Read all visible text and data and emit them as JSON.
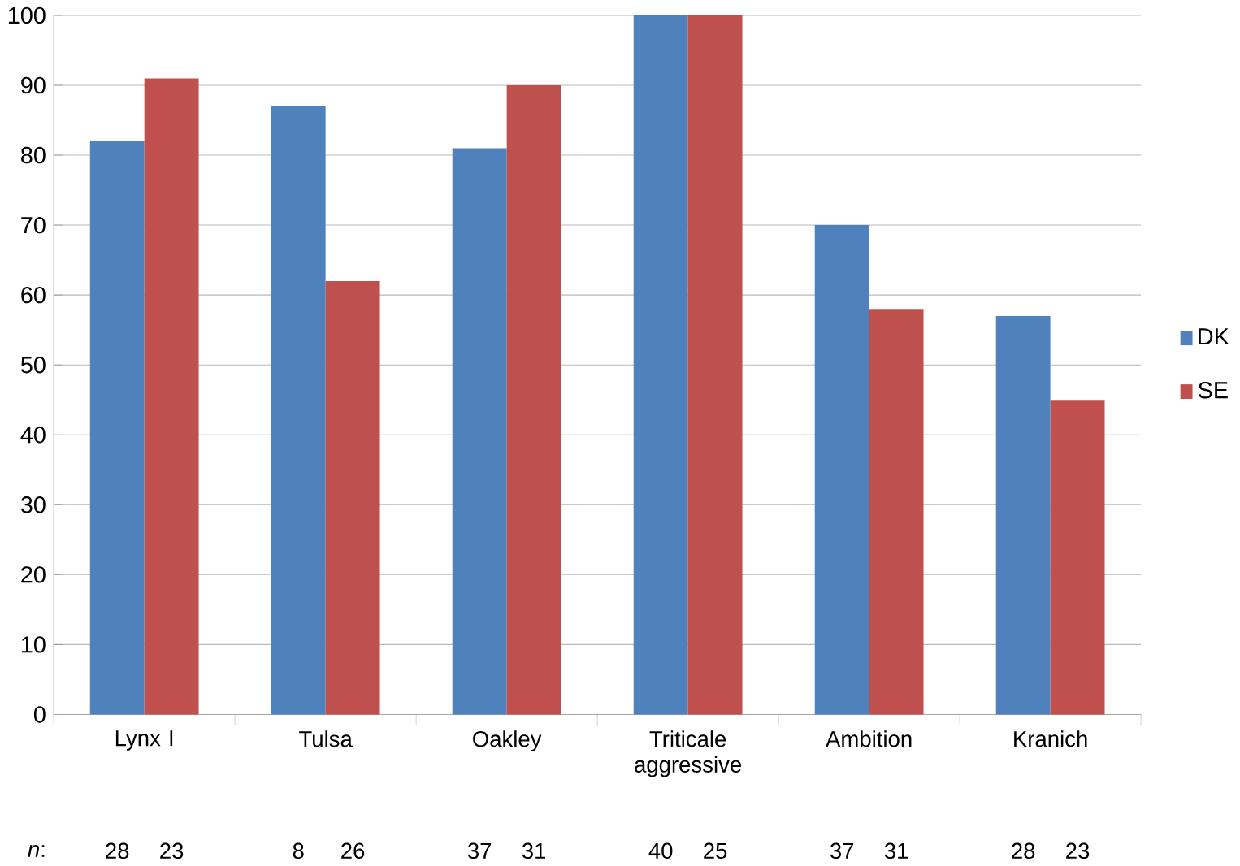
{
  "chart_data": {
    "type": "bar",
    "categories": [
      "Lynx I",
      "Tulsa",
      "Oakley",
      "Triticale aggressive",
      "Ambition",
      "Kranich"
    ],
    "series": [
      {
        "name": "DK",
        "color": "#4f81bd",
        "values": [
          82,
          87,
          81,
          100,
          70,
          57
        ]
      },
      {
        "name": "SE",
        "color": "#c0504d",
        "values": [
          91,
          62,
          90,
          100,
          58,
          45
        ]
      }
    ],
    "ylim": [
      0,
      100
    ],
    "yticks": [
      0,
      10,
      20,
      30,
      40,
      50,
      60,
      70,
      80,
      90,
      100
    ],
    "grid": "y",
    "legend": "right",
    "annotations": [
      "*n*:",
      "28",
      "23",
      "8",
      "26",
      "37",
      "31",
      "40",
      "25",
      "37",
      "31",
      "28",
      "23"
    ]
  }
}
